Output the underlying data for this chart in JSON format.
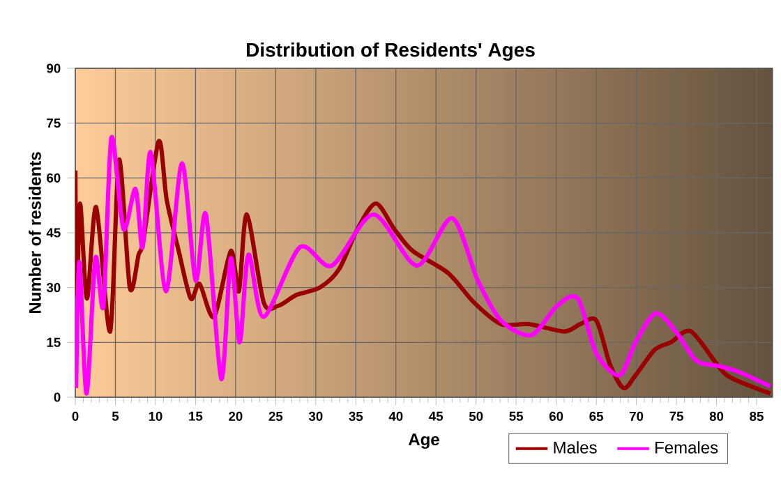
{
  "chart_data": {
    "type": "line",
    "title": "Distribution of Residents' Ages",
    "xlabel": "Age",
    "ylabel": "Number of residents",
    "xlim": [
      0,
      87
    ],
    "xticks": [
      0,
      5,
      10,
      15,
      20,
      25,
      30,
      35,
      40,
      45,
      50,
      55,
      60,
      65,
      70,
      75,
      80,
      85
    ],
    "ylim": [
      0,
      90
    ],
    "yticks": [
      0,
      15,
      30,
      45,
      60,
      75,
      90
    ],
    "grid": true,
    "legend": "bottom",
    "marker": "none",
    "line_style": "solid",
    "series": [
      {
        "name": "Males",
        "color": "#990000",
        "x": [
          0,
          0.2,
          0.6,
          1.45,
          2.6,
          4.35,
          5.45,
          6.8,
          7.9,
          8.5,
          10.4,
          11.4,
          12.9,
          14.4,
          15.5,
          17.3,
          19.4,
          20.4,
          21.4,
          23.5,
          25.3,
          27.6,
          30.5,
          32.9,
          35.2,
          37.5,
          39.8,
          42.1,
          46.5,
          49.7,
          53.1,
          56.6,
          61.0,
          63.0,
          65.0,
          66.7,
          68.4,
          69.9,
          72.3,
          74.3,
          76.8,
          80.4,
          82.1,
          86.7
        ],
        "values": [
          62,
          28,
          53,
          27,
          52,
          18,
          65,
          30,
          39,
          43,
          70,
          54,
          40,
          27,
          31,
          22,
          40,
          29,
          50,
          26,
          25,
          28,
          30,
          35,
          46,
          53,
          46,
          40,
          34,
          26,
          20,
          20,
          18,
          20,
          21,
          9,
          2.5,
          6,
          13,
          15,
          18,
          8,
          5,
          1
        ]
      },
      {
        "name": "Females",
        "color": "#ff00ff",
        "x": [
          0.1,
          0.5,
          1.4,
          2.5,
          3.5,
          4.5,
          6.0,
          7.5,
          8.4,
          9.4,
          11.3,
          13.3,
          15.0,
          16.3,
          18.2,
          19.4,
          20.5,
          21.6,
          23.5,
          28.0,
          32.0,
          37.2,
          42.6,
          47.0,
          50.2,
          53.1,
          56.9,
          60.1,
          62.7,
          65.0,
          67.9,
          69.9,
          72.4,
          74.9,
          77.5,
          80.4,
          82.7,
          86.7
        ],
        "values": [
          2.5,
          37,
          1,
          38,
          25,
          71,
          46,
          57,
          41,
          67,
          29,
          64,
          32,
          50,
          5,
          38,
          15,
          39,
          22,
          41,
          36,
          50,
          36,
          49,
          32,
          21,
          17,
          25,
          27,
          12,
          6,
          15,
          23,
          18,
          10,
          8.5,
          7,
          3
        ]
      }
    ]
  }
}
